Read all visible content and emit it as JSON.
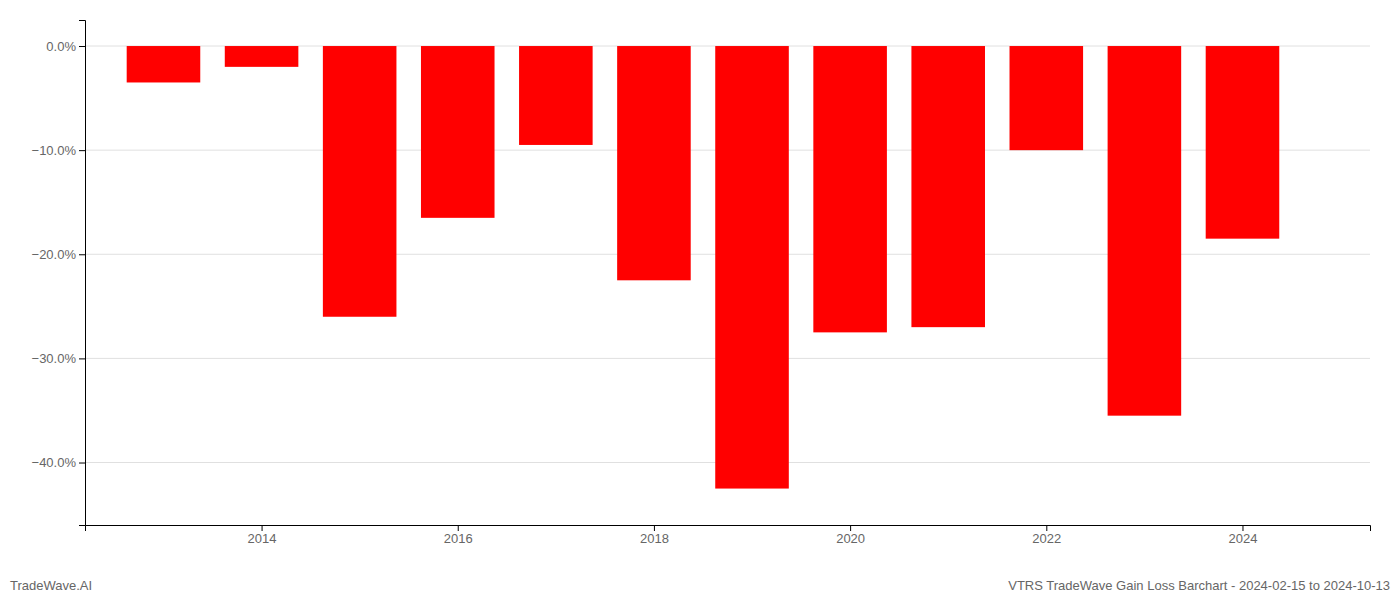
{
  "chart_data": {
    "type": "bar",
    "title": "VTRS TradeWave Gain Loss Barchart - 2024-02-15 to 2024-10-13",
    "annotations": [
      "TradeWave.AI"
    ],
    "x": [
      2013,
      2014,
      2015,
      2016,
      2017,
      2018,
      2019,
      2020,
      2021,
      2022,
      2023,
      2024
    ],
    "values": [
      -3.5,
      -2.0,
      -26.0,
      -16.5,
      -9.5,
      -22.5,
      -42.5,
      -27.5,
      -27.0,
      -10.0,
      -35.5,
      -18.5
    ],
    "color": "#ff0000",
    "xlim": [
      2012.2,
      2025.3
    ],
    "xticks": [
      2014,
      2016,
      2018,
      2020,
      2022,
      2024
    ],
    "ylim": [
      -46,
      2.5
    ],
    "yticks": [
      {
        "value": 0.0,
        "label": "0.0%"
      },
      {
        "value": -10.0,
        "label": "−10.0%"
      },
      {
        "value": -20.0,
        "label": "−20.0%"
      },
      {
        "value": -30.0,
        "label": "−30.0%"
      },
      {
        "value": -40.0,
        "label": "−40.0%"
      }
    ],
    "grid": true
  }
}
